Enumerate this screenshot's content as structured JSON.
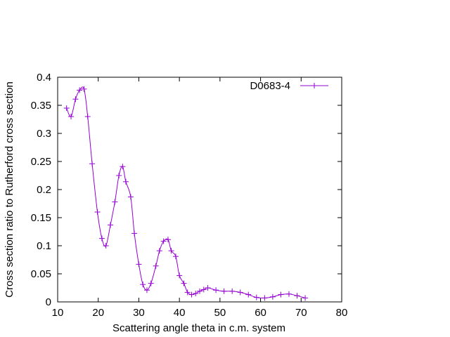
{
  "chart_data": {
    "type": "line",
    "title": "",
    "xlabel": "Scattering angle theta in c.m. system",
    "ylabel": "Cross section ratio to Rutherford cross section",
    "xlim": [
      10,
      80
    ],
    "ylim": [
      0,
      0.4
    ],
    "xticks": [
      "10",
      "20",
      "30",
      "40",
      "50",
      "60",
      "70",
      "80"
    ],
    "yticks": [
      "0",
      "0.05",
      "0.1",
      "0.15",
      "0.2",
      "0.25",
      "0.3",
      "0.35",
      "0.4"
    ],
    "grid": false,
    "legend_position": "top-right",
    "series": [
      {
        "name": "D0683-4",
        "color": "#9400d3",
        "marker": "plus",
        "x": [
          12.2,
          13.3,
          14.4,
          15.4,
          16.5,
          17.4,
          18.5,
          19.8,
          20.9,
          21.9,
          23.0,
          24.1,
          25.1,
          26.0,
          26.8,
          28.0,
          28.9,
          30.0,
          31.0,
          32.0,
          33.0,
          34.2,
          35.1,
          36.1,
          37.2,
          38.0,
          39.1,
          40.0,
          41.1,
          42.0,
          43.0,
          44.0,
          45.0,
          46.0,
          47.0,
          49.0,
          51.0,
          53.0,
          55.0,
          57.0,
          59.0,
          61.0,
          63.0,
          65.0,
          67.0,
          69.0,
          71.0
        ],
        "y": [
          0.345,
          0.33,
          0.361,
          0.377,
          0.379,
          0.33,
          0.246,
          0.16,
          0.113,
          0.1,
          0.137,
          0.178,
          0.225,
          0.241,
          0.214,
          0.187,
          0.122,
          0.067,
          0.031,
          0.021,
          0.033,
          0.064,
          0.091,
          0.108,
          0.111,
          0.091,
          0.081,
          0.047,
          0.033,
          0.017,
          0.013,
          0.015,
          0.019,
          0.022,
          0.025,
          0.021,
          0.019,
          0.019,
          0.017,
          0.013,
          0.008,
          0.007,
          0.009,
          0.013,
          0.014,
          0.011,
          0.007
        ]
      }
    ]
  }
}
